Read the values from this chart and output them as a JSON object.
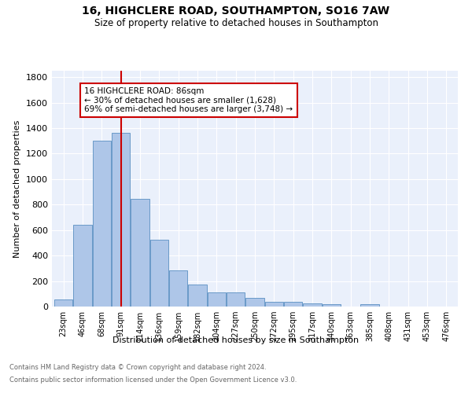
{
  "title": "16, HIGHCLERE ROAD, SOUTHAMPTON, SO16 7AW",
  "subtitle": "Size of property relative to detached houses in Southampton",
  "xlabel": "Distribution of detached houses by size in Southampton",
  "ylabel": "Number of detached properties",
  "footnote1": "Contains HM Land Registry data © Crown copyright and database right 2024.",
  "footnote2": "Contains public sector information licensed under the Open Government Licence v3.0.",
  "annotation_title": "16 HIGHCLERE ROAD: 86sqm",
  "annotation_line2": "← 30% of detached houses are smaller (1,628)",
  "annotation_line3": "69% of semi-detached houses are larger (3,748) →",
  "bar_labels": [
    "23sqm",
    "46sqm",
    "68sqm",
    "91sqm",
    "114sqm",
    "136sqm",
    "159sqm",
    "182sqm",
    "204sqm",
    "227sqm",
    "250sqm",
    "272sqm",
    "295sqm",
    "317sqm",
    "340sqm",
    "363sqm",
    "385sqm",
    "408sqm",
    "431sqm",
    "453sqm",
    "476sqm"
  ],
  "bar_values": [
    55,
    640,
    1300,
    1360,
    845,
    525,
    285,
    175,
    110,
    110,
    70,
    40,
    40,
    25,
    20,
    0,
    20,
    0,
    0,
    0,
    0
  ],
  "bar_color": "#aec6e8",
  "bar_edge_color": "#5a8fc2",
  "background_color": "#eaf0fb",
  "grid_color": "#ffffff",
  "vline_color": "#cc0000",
  "vline_x_index": 3.0,
  "ylim": [
    0,
    1850
  ],
  "yticks": [
    0,
    200,
    400,
    600,
    800,
    1000,
    1200,
    1400,
    1600,
    1800
  ],
  "annotation_box_color": "#ffffff",
  "annotation_box_edge": "#cc0000",
  "title_fontsize": 10,
  "subtitle_fontsize": 8.5,
  "footnote_color": "#666666"
}
